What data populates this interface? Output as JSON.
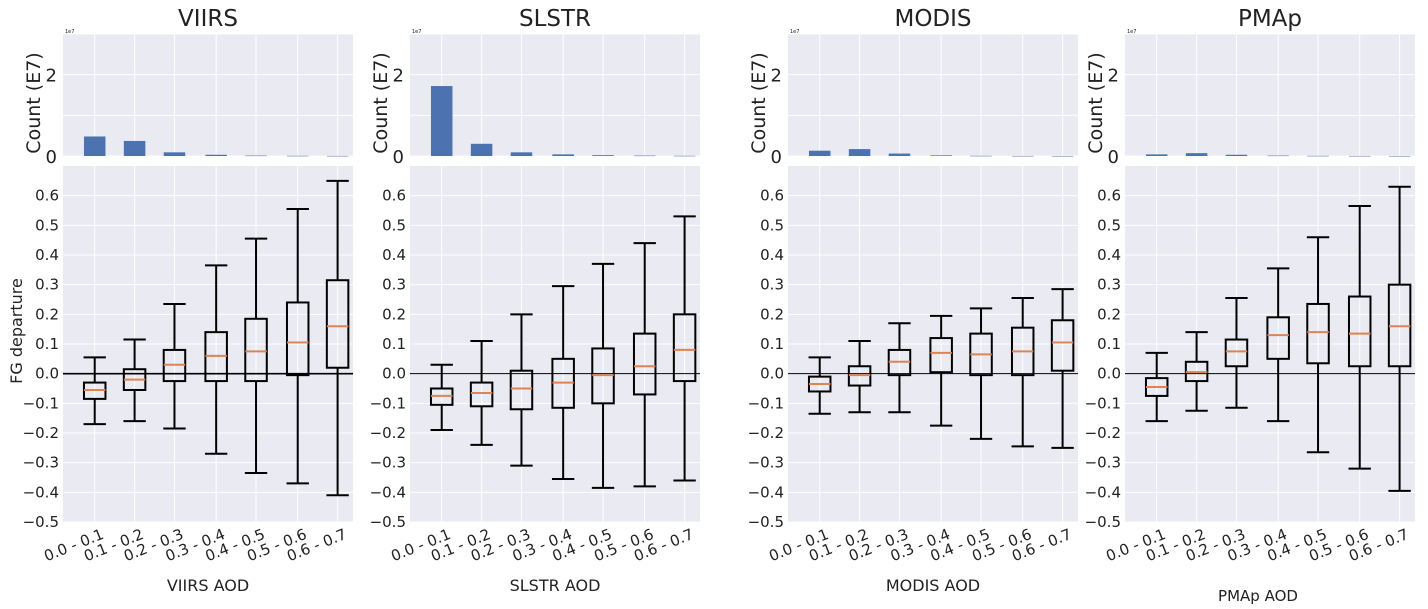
{
  "chart_data": {
    "type": "box",
    "shared": {
      "categories": [
        "0.0 - 0.1",
        "0.1 - 0.2",
        "0.2 - 0.3",
        "0.3 - 0.4",
        "0.4 - 0.5",
        "0.5 - 0.6",
        "0.6 - 0.7"
      ],
      "ylabel": "FG departure",
      "ylim": [
        -0.5,
        0.7
      ],
      "yticks": [
        "-0.5",
        "-0.4",
        "-0.3",
        "-0.2",
        "-0.1",
        "0.0",
        "0.1",
        "0.2",
        "0.3",
        "0.4",
        "0.5",
        "0.6"
      ],
      "count_ylabel": "Count (E7)",
      "count_ylim": [
        0,
        3
      ],
      "count_yticks": [
        "0",
        "2"
      ],
      "count_multiplier": "1e7",
      "grid": true,
      "colors": {
        "bar": "#4c72b0",
        "median": "#dd8452",
        "box": "#000000",
        "background": "#eaeaf2",
        "zero_line": "#000000"
      }
    },
    "panels": [
      {
        "title": "VIIRS",
        "xlabel": "VIIRS  AOD",
        "counts": [
          0.48,
          0.37,
          0.09,
          0.03,
          0.01,
          0.005,
          0.003
        ],
        "boxes": [
          {
            "whislo": -0.17,
            "q1": -0.085,
            "med": -0.055,
            "q3": -0.03,
            "whishi": 0.055
          },
          {
            "whislo": -0.16,
            "q1": -0.055,
            "med": -0.02,
            "q3": 0.015,
            "whishi": 0.115
          },
          {
            "whislo": -0.185,
            "q1": -0.025,
            "med": 0.03,
            "q3": 0.08,
            "whishi": 0.235
          },
          {
            "whislo": -0.27,
            "q1": -0.025,
            "med": 0.06,
            "q3": 0.14,
            "whishi": 0.365
          },
          {
            "whislo": -0.335,
            "q1": -0.025,
            "med": 0.075,
            "q3": 0.185,
            "whishi": 0.455
          },
          {
            "whislo": -0.37,
            "q1": -0.005,
            "med": 0.105,
            "q3": 0.24,
            "whishi": 0.555
          },
          {
            "whislo": -0.41,
            "q1": 0.02,
            "med": 0.16,
            "q3": 0.315,
            "whishi": 0.65
          }
        ]
      },
      {
        "title": "SLSTR",
        "xlabel": "SLSTR  AOD",
        "counts": [
          1.72,
          0.3,
          0.09,
          0.04,
          0.02,
          0.01,
          0.005
        ],
        "boxes": [
          {
            "whislo": -0.19,
            "q1": -0.105,
            "med": -0.075,
            "q3": -0.05,
            "whishi": 0.03
          },
          {
            "whislo": -0.24,
            "q1": -0.11,
            "med": -0.065,
            "q3": -0.03,
            "whishi": 0.11
          },
          {
            "whislo": -0.31,
            "q1": -0.12,
            "med": -0.05,
            "q3": 0.01,
            "whishi": 0.2
          },
          {
            "whislo": -0.355,
            "q1": -0.115,
            "med": -0.03,
            "q3": 0.05,
            "whishi": 0.295
          },
          {
            "whislo": -0.385,
            "q1": -0.1,
            "med": -0.005,
            "q3": 0.085,
            "whishi": 0.37
          },
          {
            "whislo": -0.38,
            "q1": -0.07,
            "med": 0.025,
            "q3": 0.135,
            "whishi": 0.44
          },
          {
            "whislo": -0.36,
            "q1": -0.025,
            "med": 0.08,
            "q3": 0.2,
            "whishi": 0.53
          }
        ]
      },
      {
        "title": "MODIS",
        "xlabel": "MODIS  AOD",
        "counts": [
          0.13,
          0.17,
          0.06,
          0.015,
          0.005,
          0.002,
          0.001
        ],
        "boxes": [
          {
            "whislo": -0.135,
            "q1": -0.06,
            "med": -0.035,
            "q3": -0.01,
            "whishi": 0.055
          },
          {
            "whislo": -0.13,
            "q1": -0.04,
            "med": -0.005,
            "q3": 0.025,
            "whishi": 0.11
          },
          {
            "whislo": -0.13,
            "q1": -0.005,
            "med": 0.04,
            "q3": 0.08,
            "whishi": 0.17
          },
          {
            "whislo": -0.175,
            "q1": 0.005,
            "med": 0.07,
            "q3": 0.12,
            "whishi": 0.195
          },
          {
            "whislo": -0.22,
            "q1": -0.005,
            "med": 0.065,
            "q3": 0.135,
            "whishi": 0.22
          },
          {
            "whislo": -0.245,
            "q1": -0.005,
            "med": 0.075,
            "q3": 0.155,
            "whishi": 0.255
          },
          {
            "whislo": -0.25,
            "q1": 0.01,
            "med": 0.105,
            "q3": 0.18,
            "whishi": 0.285
          }
        ]
      },
      {
        "title": "PMAp",
        "xlabel": "PMAp  AOD",
        "counts": [
          0.04,
          0.07,
          0.03,
          0.01,
          0.004,
          0.002,
          0.001
        ],
        "boxes": [
          {
            "whislo": -0.16,
            "q1": -0.075,
            "med": -0.045,
            "q3": -0.015,
            "whishi": 0.07
          },
          {
            "whislo": -0.125,
            "q1": -0.025,
            "med": 0.005,
            "q3": 0.04,
            "whishi": 0.14
          },
          {
            "whislo": -0.115,
            "q1": 0.025,
            "med": 0.075,
            "q3": 0.115,
            "whishi": 0.255
          },
          {
            "whislo": -0.16,
            "q1": 0.05,
            "med": 0.13,
            "q3": 0.19,
            "whishi": 0.355
          },
          {
            "whislo": -0.265,
            "q1": 0.035,
            "med": 0.14,
            "q3": 0.235,
            "whishi": 0.46
          },
          {
            "whislo": -0.32,
            "q1": 0.025,
            "med": 0.135,
            "q3": 0.26,
            "whishi": 0.565
          },
          {
            "whislo": -0.395,
            "q1": 0.025,
            "med": 0.16,
            "q3": 0.3,
            "whishi": 0.63
          }
        ]
      }
    ]
  }
}
